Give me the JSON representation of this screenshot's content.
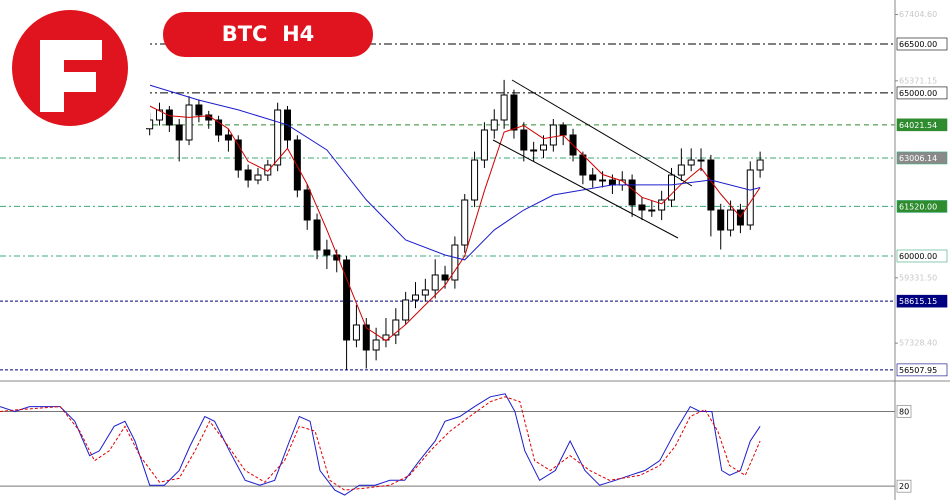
{
  "chart_data": {
    "type": "candlestick",
    "title": "BTC  H4",
    "xlim": [
      -15.2,
      75.7
    ],
    "ylim": [
      56198,
      67849
    ],
    "yticks": [
      {
        "value": 67404.6,
        "label": "67404.60"
      },
      {
        "value": 65371.15,
        "label": "65371.15"
      },
      {
        "value": 59331.5,
        "label": "59331.50"
      },
      {
        "value": 57328.4,
        "label": "57328.40"
      }
    ],
    "open": [
      63900,
      64170,
      64476,
      64017,
      63557,
      64630,
      64323,
      64170,
      63710,
      63557,
      62637,
      62330,
      62483,
      62790,
      64476,
      63557,
      62024,
      61104,
      60184,
      60031,
      59877,
      57425,
      57885,
      57118,
      57425,
      57578,
      58038,
      58651,
      58804,
      58958,
      59418,
      59264,
      60337,
      61717,
      62943,
      63863,
      64170,
      64936,
      63863,
      63250,
      63250,
      63403,
      64017,
      63710,
      63097,
      62483,
      62330,
      62330,
      62177,
      62330,
      61564,
      61410,
      61410,
      61717,
      62483,
      62790,
      62943,
      62943,
      61410,
      60797,
      61410,
      60951,
      62637
    ],
    "high": [
      64400,
      64700,
      64600,
      64200,
      64900,
      64800,
      64450,
      64300,
      63900,
      63700,
      62800,
      62700,
      62950,
      64700,
      64600,
      63700,
      62200,
      61300,
      60500,
      60200,
      60000,
      58500,
      58100,
      57800,
      58100,
      58400,
      58900,
      59200,
      59300,
      59900,
      59700,
      60600,
      61900,
      63200,
      64100,
      64500,
      65400,
      65100,
      64100,
      63500,
      63700,
      64200,
      64100,
      63900,
      63200,
      62700,
      62600,
      62500,
      62600,
      62500,
      61800,
      61700,
      62000,
      62700,
      63300,
      63300,
      63300,
      63100,
      61600,
      61700,
      61600,
      62900,
      63200
    ],
    "low": [
      63700,
      64000,
      63800,
      62900,
      63400,
      64100,
      63900,
      63500,
      63200,
      62400,
      62100,
      62200,
      62300,
      62600,
      63300,
      61800,
      60800,
      59900,
      59600,
      59500,
      56500,
      57200,
      56550,
      56800,
      57200,
      57300,
      57900,
      58400,
      58600,
      58700,
      59000,
      59000,
      60100,
      61500,
      62700,
      63600,
      63900,
      63600,
      62900,
      62900,
      63000,
      63200,
      63400,
      62900,
      62200,
      62100,
      62100,
      61900,
      62000,
      61200,
      61100,
      61200,
      61100,
      61500,
      62300,
      62600,
      62600,
      60600,
      60200,
      60600,
      60700,
      60800,
      62400
    ],
    "close": [
      64170,
      64476,
      64017,
      63557,
      64630,
      64323,
      64170,
      63710,
      63557,
      62637,
      62330,
      62483,
      62790,
      64476,
      63557,
      62024,
      61104,
      60184,
      60031,
      59877,
      57425,
      57885,
      57118,
      57425,
      57578,
      58038,
      58651,
      58804,
      58958,
      59418,
      59264,
      60337,
      61717,
      62943,
      63863,
      64170,
      64936,
      63863,
      63250,
      63250,
      63403,
      64017,
      63710,
      63097,
      62483,
      62330,
      62330,
      62177,
      62330,
      61564,
      61410,
      61410,
      61717,
      62483,
      62790,
      62943,
      62943,
      61410,
      60797,
      61410,
      60951,
      62637,
      62943
    ],
    "up_color": "#ffffff",
    "down_color": "#000000",
    "levels": [
      {
        "value": 66500,
        "label": "66500.00",
        "color": "#000000",
        "label_bg": "#ffffff",
        "label_color": "#000000"
      },
      {
        "value": 65000,
        "label": "65000.00",
        "color": "#000000",
        "label_bg": "#ffffff",
        "label_color": "#000000"
      },
      {
        "value": 64021.54,
        "label": "64021.54",
        "color": "#2e8b2e",
        "label_bg": "#2e8b2e",
        "label_color": "#ffffff"
      },
      {
        "value": 63006.14,
        "label": "63006.14",
        "color": "#3aa87a",
        "label_bg": "#8a8a8a",
        "label_color": "#ffffff"
      },
      {
        "value": 61520,
        "label": "61520.00",
        "color": "#3aa87a",
        "label_bg": "#2e8b2e",
        "label_color": "#ffffff"
      },
      {
        "value": 60000,
        "label": "60000.00",
        "color": "#3aa87a",
        "label_bg": "#ffffff",
        "label_color": "#000000"
      },
      {
        "value": 58615.15,
        "label": "58615.15",
        "color": "#000080",
        "label_bg": "#000080",
        "label_color": "#ffffff"
      },
      {
        "value": 56507.95,
        "label": "56507.95",
        "color": "#000080",
        "label_bg": "#ffffff",
        "label_color": "#000000"
      }
    ],
    "series": [
      {
        "color": "#d00000",
        "x": [
          0,
          2,
          4,
          6,
          8,
          10,
          12,
          14,
          16,
          18,
          20,
          22,
          24,
          26,
          28,
          30,
          32,
          34,
          36,
          38,
          40,
          42,
          44,
          46,
          48,
          50,
          52,
          54,
          56,
          58,
          60,
          62
        ],
        "values": [
          64600,
          64300,
          64250,
          64300,
          63900,
          62900,
          62600,
          63300,
          62200,
          60800,
          59300,
          57800,
          57400,
          57900,
          58500,
          59100,
          60000,
          62000,
          63800,
          64000,
          63600,
          63700,
          63100,
          62500,
          62300,
          61800,
          61600,
          62200,
          62700,
          61900,
          61200,
          62100
        ]
      },
      {
        "color": "#1c1ccc",
        "x": [
          0,
          5,
          9,
          14,
          18,
          22,
          26,
          30,
          32,
          35,
          38,
          41,
          47,
          53,
          57,
          61,
          62
        ],
        "values": [
          65240,
          64780,
          64480,
          64020,
          63250,
          61720,
          60490,
          60030,
          59880,
          60800,
          61410,
          61870,
          62180,
          62180,
          62330,
          62020,
          62100
        ]
      }
    ],
    "indicator": {
      "type": "line",
      "ylim": [
        12.9,
        103.7
      ],
      "yticks": [
        80,
        20
      ],
      "series": [
        {
          "color": "#1c1ccc",
          "x": [
            -15.2,
            -13.7,
            -12.2,
            -9.1,
            -7.6,
            -6.1,
            -5.1,
            -3.6,
            -2.5,
            -1.5,
            0,
            1.5,
            3,
            4.1,
            5.6,
            6.6,
            8.1,
            9.7,
            11.2,
            12.7,
            14.2,
            15.2,
            16.3,
            17.3,
            18.8,
            19.8,
            21.3,
            22.9,
            24.4,
            25.9,
            27.4,
            29,
            30,
            31.5,
            33,
            34.6,
            36.1,
            37.1,
            38.1,
            39.6,
            41.2,
            42.7,
            44.2,
            45.7,
            47.3,
            48.8,
            50.3,
            51.8,
            53.4,
            54.9,
            55.9,
            57.1,
            58.1,
            58.9,
            60,
            61,
            62
          ],
          "values": [
            83.9,
            80,
            83.9,
            83.9,
            72.1,
            44.5,
            48.4,
            68.1,
            72.1,
            56.3,
            20.8,
            20.8,
            32.6,
            52.3,
            76,
            72.1,
            48.4,
            24.7,
            20.8,
            24.7,
            56.3,
            76,
            72.1,
            32.6,
            16.8,
            12.9,
            20.8,
            20.8,
            24.7,
            24.7,
            40.5,
            56.3,
            72.1,
            76,
            83.9,
            91.8,
            94.2,
            80,
            48.4,
            24.7,
            32.6,
            56.3,
            32.6,
            20.8,
            24.7,
            28.7,
            32.6,
            40.5,
            64.2,
            83.9,
            80,
            80,
            32.6,
            28.7,
            32.6,
            56.3,
            68.1
          ]
        },
        {
          "color": "#e00000",
          "x": [
            -15.2,
            -13.2,
            -9.1,
            -7.1,
            -5.6,
            -4.1,
            -2.5,
            -1,
            1,
            3,
            4.6,
            6.1,
            7.6,
            9.7,
            11.7,
            13.7,
            15.2,
            16.8,
            18.3,
            19.8,
            21.8,
            24.4,
            26.4,
            28.5,
            30.5,
            32.5,
            34.6,
            36.1,
            37.6,
            39.1,
            40.7,
            42.7,
            44.7,
            46.7,
            49.8,
            51.8,
            53.4,
            54.9,
            56.4,
            57.7,
            58.9,
            60.5,
            62
          ],
          "values": [
            80,
            81.5,
            83.9,
            64.2,
            40.5,
            48.4,
            68.1,
            44.5,
            23.2,
            26.3,
            48.4,
            72.1,
            56.3,
            32.6,
            23.2,
            40.5,
            68.1,
            64.2,
            24.7,
            16.8,
            18.4,
            20.8,
            28.7,
            48.4,
            64.2,
            76,
            87.9,
            91.8,
            87.9,
            40.5,
            32.6,
            44.5,
            32.6,
            24.7,
            28.7,
            36.5,
            52.3,
            76,
            81.5,
            64.2,
            36.5,
            28.7,
            56.3
          ]
        }
      ]
    }
  }
}
